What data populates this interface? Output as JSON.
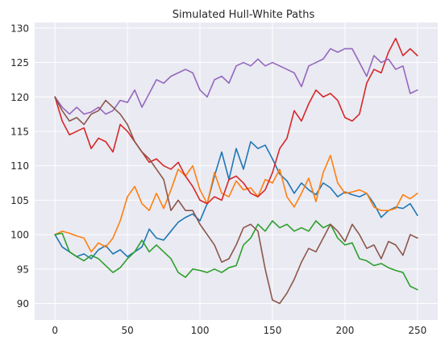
{
  "chart_data": {
    "type": "line",
    "title": "Simulated Hull-White Paths",
    "xlabel": "",
    "ylabel": "",
    "xlim": [
      -14,
      264
    ],
    "ylim": [
      87.6,
      130.8
    ],
    "xticks": [
      0,
      50,
      100,
      150,
      200,
      250
    ],
    "yticks": [
      90,
      95,
      100,
      105,
      110,
      115,
      120,
      125,
      130
    ],
    "grid": true,
    "background": "#eaeaf2",
    "series": [
      {
        "color": "#1f77b4",
        "x": [
          0,
          5,
          10,
          15,
          20,
          25,
          30,
          35,
          40,
          45,
          50,
          55,
          60,
          65,
          70,
          75,
          80,
          85,
          90,
          95,
          100,
          105,
          110,
          115,
          120,
          125,
          130,
          135,
          140,
          145,
          150,
          155,
          160,
          165,
          170,
          175,
          180,
          185,
          190,
          195,
          200,
          205,
          210,
          215,
          220,
          225,
          230,
          235,
          240,
          245,
          250
        ],
        "values": [
          100.0,
          98.2,
          97.5,
          96.8,
          97.2,
          96.5,
          97.8,
          98.4,
          97.2,
          97.8,
          96.8,
          97.5,
          98.2,
          100.8,
          99.5,
          99.2,
          100.5,
          101.8,
          102.5,
          103.0,
          102.0,
          104.5,
          108.5,
          112.0,
          108.0,
          112.5,
          109.5,
          113.5,
          112.5,
          113.0,
          111.0,
          108.8,
          107.8,
          106.0,
          107.5,
          106.5,
          105.8,
          107.5,
          106.8,
          105.5,
          106.2,
          105.8,
          105.5,
          106.0,
          104.5,
          102.5,
          103.5,
          104.0,
          103.8,
          104.5,
          102.8
        ]
      },
      {
        "color": "#ff7f0e",
        "x": [
          0,
          5,
          10,
          15,
          20,
          25,
          30,
          35,
          40,
          45,
          50,
          55,
          60,
          65,
          70,
          75,
          80,
          85,
          90,
          95,
          100,
          105,
          110,
          115,
          120,
          125,
          130,
          135,
          140,
          145,
          150,
          155,
          160,
          165,
          170,
          175,
          180,
          185,
          190,
          195,
          200,
          205,
          210,
          215,
          220,
          225,
          230,
          235,
          240,
          245,
          250
        ],
        "values": [
          100.0,
          100.5,
          100.2,
          99.8,
          99.5,
          97.5,
          98.8,
          98.2,
          99.5,
          102.0,
          105.5,
          107.0,
          104.5,
          103.5,
          106.0,
          103.8,
          106.5,
          109.5,
          108.5,
          110.0,
          106.5,
          104.5,
          109.0,
          106.0,
          105.5,
          107.8,
          106.5,
          106.8,
          105.5,
          108.0,
          107.5,
          109.5,
          105.5,
          104.0,
          106.0,
          108.2,
          104.8,
          109.0,
          111.5,
          107.5,
          106.0,
          106.2,
          106.5,
          106.0,
          104.0,
          103.5,
          103.5,
          103.8,
          105.8,
          105.2,
          106.0
        ]
      },
      {
        "color": "#2ca02c",
        "x": [
          0,
          5,
          10,
          15,
          20,
          25,
          30,
          35,
          40,
          45,
          50,
          55,
          60,
          65,
          70,
          75,
          80,
          85,
          90,
          95,
          100,
          105,
          110,
          115,
          120,
          125,
          130,
          135,
          140,
          145,
          150,
          155,
          160,
          165,
          170,
          175,
          180,
          185,
          190,
          195,
          200,
          205,
          210,
          215,
          220,
          225,
          230,
          235,
          240,
          245,
          250
        ],
        "values": [
          100.0,
          100.2,
          97.5,
          96.8,
          96.2,
          97.0,
          96.5,
          95.5,
          94.5,
          95.2,
          96.5,
          97.5,
          99.2,
          97.5,
          98.5,
          97.5,
          96.5,
          94.5,
          93.8,
          95.0,
          94.8,
          94.5,
          95.0,
          94.5,
          95.2,
          95.5,
          98.5,
          99.5,
          101.5,
          100.5,
          102.0,
          101.0,
          101.5,
          100.5,
          101.0,
          100.5,
          102.0,
          101.0,
          101.5,
          99.5,
          98.5,
          98.8,
          96.5,
          96.2,
          95.5,
          95.8,
          95.2,
          94.8,
          94.5,
          92.5,
          92.0
        ]
      },
      {
        "color": "#d62728",
        "x": [
          0,
          5,
          10,
          15,
          20,
          25,
          30,
          35,
          40,
          45,
          50,
          55,
          60,
          65,
          70,
          75,
          80,
          85,
          90,
          95,
          100,
          105,
          110,
          115,
          120,
          125,
          130,
          135,
          140,
          145,
          150,
          155,
          160,
          165,
          170,
          175,
          180,
          185,
          190,
          195,
          200,
          205,
          210,
          215,
          220,
          225,
          230,
          235,
          240,
          245,
          250
        ],
        "values": [
          120.0,
          116.5,
          114.5,
          115.0,
          115.5,
          112.5,
          114.0,
          113.5,
          112.0,
          116.0,
          115.0,
          113.5,
          112.0,
          110.5,
          111.0,
          110.0,
          109.5,
          110.5,
          108.5,
          107.0,
          105.0,
          104.5,
          105.5,
          105.0,
          108.0,
          108.5,
          107.5,
          106.0,
          105.5,
          106.5,
          109.0,
          112.5,
          114.0,
          118.0,
          116.5,
          119.0,
          121.0,
          120.0,
          120.5,
          119.5,
          117.0,
          116.5,
          117.5,
          122.0,
          124.0,
          123.5,
          126.5,
          128.5,
          126.0,
          127.0,
          126.0
        ]
      },
      {
        "color": "#9467bd",
        "x": [
          0,
          5,
          10,
          15,
          20,
          25,
          30,
          35,
          40,
          45,
          50,
          55,
          60,
          65,
          70,
          75,
          80,
          85,
          90,
          95,
          100,
          105,
          110,
          115,
          120,
          125,
          130,
          135,
          140,
          145,
          150,
          155,
          160,
          165,
          170,
          175,
          180,
          185,
          190,
          195,
          200,
          205,
          210,
          215,
          220,
          225,
          230,
          235,
          240,
          245,
          250
        ],
        "values": [
          120.0,
          118.5,
          117.5,
          118.5,
          117.5,
          117.8,
          118.5,
          117.5,
          118.0,
          119.5,
          119.2,
          121.0,
          118.5,
          120.5,
          122.5,
          122.0,
          123.0,
          123.5,
          124.0,
          123.5,
          121.0,
          120.0,
          122.5,
          123.0,
          122.0,
          124.5,
          125.0,
          124.5,
          125.5,
          124.5,
          125.0,
          124.5,
          124.0,
          123.5,
          121.5,
          124.5,
          125.0,
          125.5,
          127.0,
          126.5,
          127.0,
          127.0,
          125.0,
          123.0,
          126.0,
          125.0,
          125.5,
          124.0,
          124.5,
          120.5,
          121.0
        ]
      },
      {
        "color": "#8c564b",
        "x": [
          0,
          5,
          10,
          15,
          20,
          25,
          30,
          35,
          40,
          45,
          50,
          55,
          60,
          65,
          70,
          75,
          80,
          85,
          90,
          95,
          100,
          105,
          110,
          115,
          120,
          125,
          130,
          135,
          140,
          145,
          150,
          155,
          160,
          165,
          170,
          175,
          180,
          185,
          190,
          195,
          200,
          205,
          210,
          215,
          220,
          225,
          230,
          235,
          240,
          245,
          250
        ],
        "values": [
          120.0,
          118.0,
          116.5,
          117.0,
          116.0,
          117.5,
          118.0,
          119.5,
          118.5,
          117.5,
          116.0,
          113.5,
          112.0,
          111.0,
          109.5,
          108.0,
          103.5,
          105.0,
          103.5,
          103.5,
          101.5,
          100.0,
          98.5,
          96.0,
          96.5,
          98.5,
          101.0,
          101.5,
          100.5,
          95.0,
          90.5,
          90.0,
          91.5,
          93.5,
          96.0,
          98.0,
          97.5,
          99.5,
          101.5,
          100.5,
          99.0,
          101.5,
          100.0,
          98.0,
          98.5,
          96.5,
          99.0,
          98.5,
          97.0,
          100.0,
          99.5
        ]
      }
    ]
  }
}
